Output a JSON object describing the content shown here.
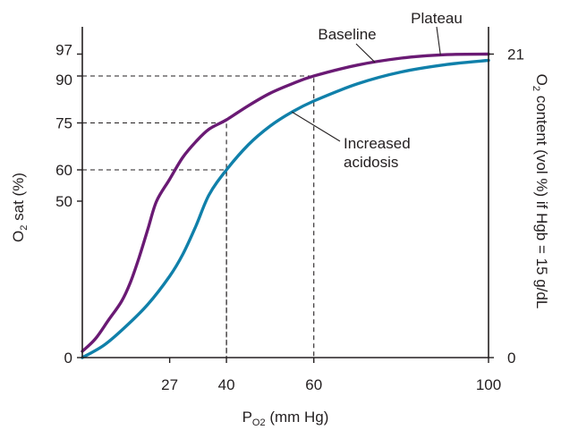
{
  "chart_data": {
    "type": "line",
    "xlabel": {
      "main": "P",
      "sub": "O2",
      "rest": " (mm Hg)"
    },
    "ylabel_left": {
      "pre": "O",
      "sub": "2",
      "post": " sat (%)"
    },
    "ylabel_right": {
      "pre": "O",
      "sub": "2",
      "post": " content (vol %) if Hgb = 15 g/dL"
    },
    "xlim": [
      7,
      100
    ],
    "ylim": [
      0,
      100
    ],
    "x_ticks": [
      27,
      40,
      60,
      100
    ],
    "y_ticks_left": [
      0,
      50,
      60,
      75,
      90,
      97
    ],
    "y_ticks_right": [
      {
        "label": "0",
        "sat": 0
      },
      {
        "label": "21",
        "sat": 97
      }
    ],
    "grid": false,
    "series": [
      {
        "name": "Baseline",
        "color": "#6a1a74",
        "x": [
          7,
          10,
          13,
          16,
          18,
          20,
          22,
          24,
          27,
          30,
          33,
          36,
          40,
          45,
          50,
          55,
          60,
          70,
          80,
          90,
          100
        ],
        "y": [
          2,
          6,
          12,
          18,
          24,
          32,
          41,
          50,
          57,
          64,
          69,
          73,
          76,
          80.5,
          84.5,
          87.5,
          90,
          93.5,
          95.7,
          96.8,
          97
        ]
      },
      {
        "name": "Increased acidosis",
        "color": "#1080aa",
        "x": [
          7,
          12,
          17,
          22,
          27,
          30,
          33,
          36,
          40,
          45,
          50,
          55,
          60,
          70,
          80,
          90,
          100
        ],
        "y": [
          0,
          4,
          10,
          17,
          26,
          33,
          42,
          52,
          60,
          68,
          74,
          78.5,
          82,
          87.5,
          91.3,
          93.6,
          95
        ]
      }
    ],
    "guides": [
      {
        "x": 40,
        "y": 75
      },
      {
        "x": 60,
        "y": 90
      },
      {
        "x": 40,
        "y": 60
      }
    ],
    "annotations": [
      {
        "text": "Plateau",
        "target_series": 0,
        "target_x": 89
      },
      {
        "text": "Baseline",
        "target_series": 0,
        "target_x": 74
      },
      {
        "lines": [
          "Increased",
          "acidosis"
        ],
        "target_series": 1,
        "target_x": 55
      }
    ]
  }
}
